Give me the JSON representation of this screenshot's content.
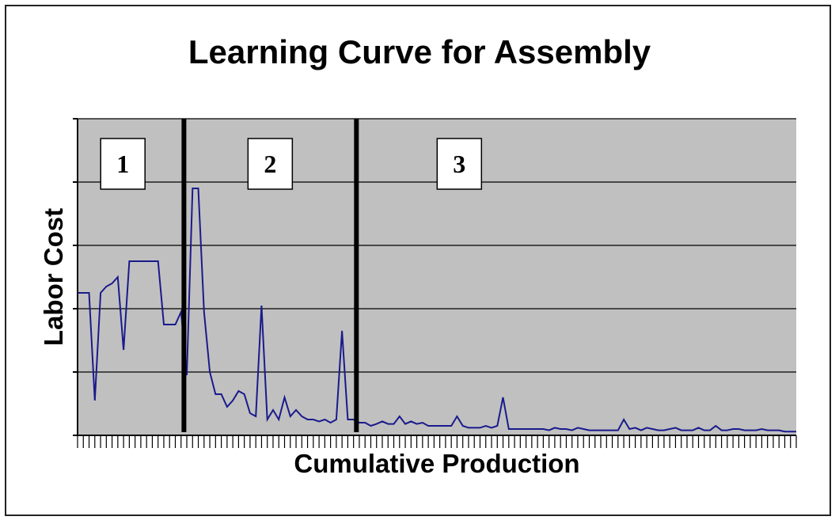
{
  "chart_data": {
    "type": "line",
    "title": "Learning Curve for Assembly",
    "xlabel": "Cumulative Production",
    "ylabel": "Labor Cost",
    "ylim": [
      0,
      5
    ],
    "grid": true,
    "legend": "none",
    "series": [
      {
        "color": "#1a1a8c",
        "values": [
          2.25,
          2.25,
          2.25,
          0.55,
          2.25,
          2.35,
          2.4,
          2.5,
          1.35,
          2.75,
          2.75,
          2.75,
          2.75,
          2.75,
          2.75,
          1.75,
          1.75,
          1.75,
          1.95,
          0.95,
          3.9,
          3.9,
          1.95,
          1.0,
          0.65,
          0.65,
          0.45,
          0.55,
          0.7,
          0.65,
          0.35,
          0.3,
          2.05,
          0.25,
          0.4,
          0.25,
          0.6,
          0.3,
          0.4,
          0.3,
          0.25,
          0.25,
          0.22,
          0.25,
          0.2,
          0.25,
          1.65,
          0.25,
          0.25,
          0.2,
          0.2,
          0.15,
          0.18,
          0.22,
          0.18,
          0.18,
          0.3,
          0.18,
          0.22,
          0.18,
          0.2,
          0.15,
          0.15,
          0.15,
          0.15,
          0.15,
          0.3,
          0.15,
          0.12,
          0.12,
          0.12,
          0.15,
          0.12,
          0.15,
          0.6,
          0.1,
          0.1,
          0.1,
          0.1,
          0.1,
          0.1,
          0.1,
          0.08,
          0.12,
          0.1,
          0.1,
          0.08,
          0.12,
          0.1,
          0.08,
          0.08,
          0.08,
          0.08,
          0.08,
          0.08,
          0.25,
          0.1,
          0.12,
          0.08,
          0.12,
          0.1,
          0.08,
          0.08,
          0.1,
          0.12,
          0.08,
          0.08,
          0.08,
          0.12,
          0.08,
          0.08,
          0.15,
          0.08,
          0.08,
          0.1,
          0.1,
          0.08,
          0.08,
          0.08,
          0.1,
          0.08,
          0.08,
          0.08,
          0.06,
          0.06,
          0.06
        ]
      }
    ],
    "phase_dividers_after_index": [
      18,
      48
    ],
    "regions": [
      "1",
      "2",
      "3"
    ]
  },
  "colors": {
    "plot_background": "#c0c0c0",
    "gridline": "#000000",
    "divider": "#000000",
    "series": "#1a1a8c"
  }
}
